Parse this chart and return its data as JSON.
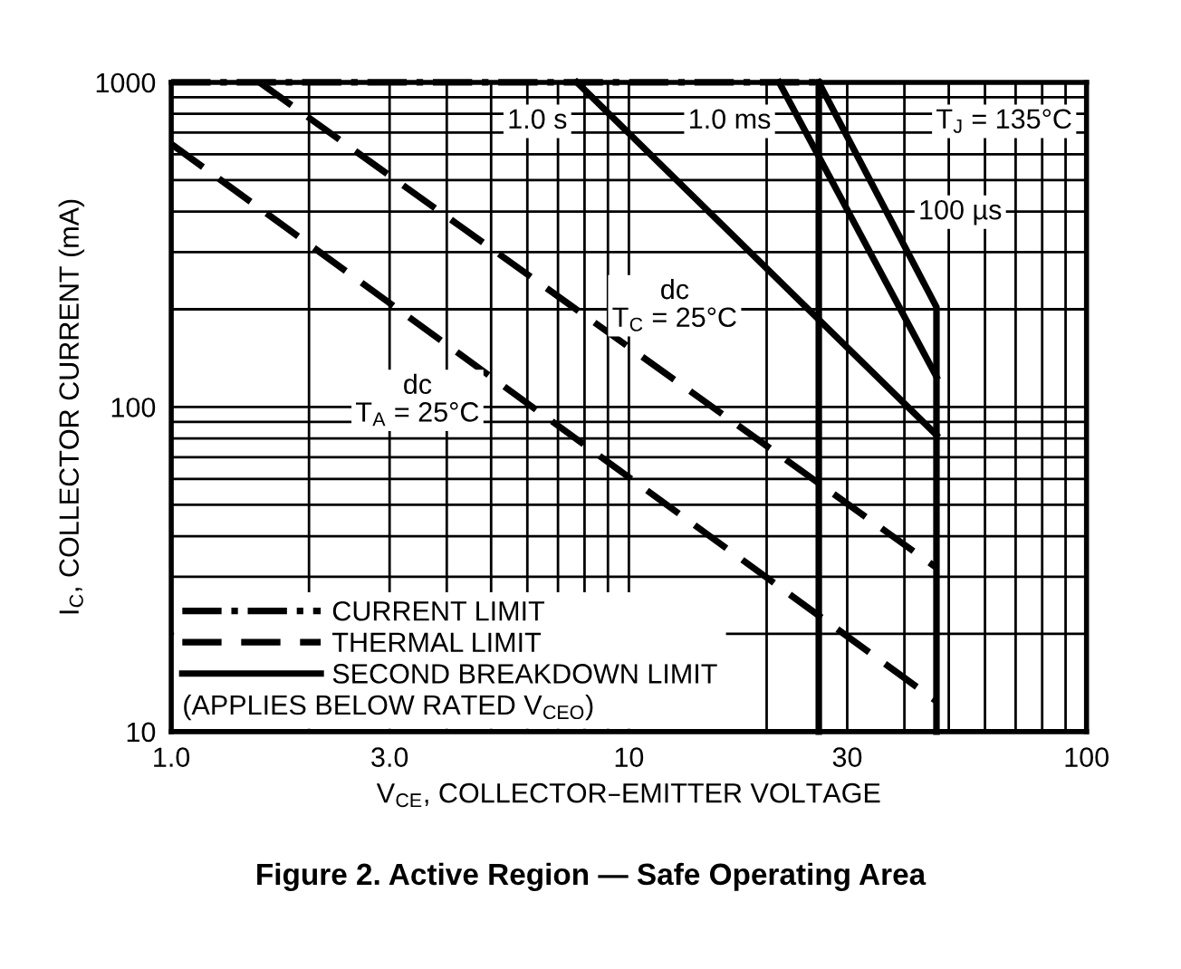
{
  "chart_data": {
    "type": "line",
    "title": "Figure 2. Active Region — Safe Operating Area",
    "xlabel": "V$_{CE}$, COLLECTOR–EMITTER VOLTAGE",
    "ylabel": "I$_{C}$, COLLECTOR CURRENT (mA)",
    "log": "xy",
    "xlim": [
      1,
      100
    ],
    "ylim": [
      10,
      1000
    ],
    "xticks": [
      {
        "value": 1,
        "label": "1.0"
      },
      {
        "value": 2,
        "label": null
      },
      {
        "value": 3,
        "label": "3.0"
      },
      {
        "value": 4,
        "label": null
      },
      {
        "value": 5,
        "label": null
      },
      {
        "value": 6,
        "label": null
      },
      {
        "value": 7,
        "label": null
      },
      {
        "value": 8,
        "label": null
      },
      {
        "value": 9,
        "label": null
      },
      10,
      {
        "value": 20,
        "label": null
      },
      30,
      {
        "value": 40,
        "label": null
      },
      {
        "value": 50,
        "label": null
      },
      {
        "value": 60,
        "label": null
      },
      {
        "value": 70,
        "label": null
      },
      {
        "value": 80,
        "label": null
      },
      {
        "value": 90,
        "label": null
      },
      100
    ],
    "yticks": [
      10,
      {
        "value": 20,
        "label": null
      },
      {
        "value": 30,
        "label": null
      },
      {
        "value": 40,
        "label": null
      },
      {
        "value": 50,
        "label": null
      },
      {
        "value": 60,
        "label": null
      },
      {
        "value": 70,
        "label": null
      },
      {
        "value": 80,
        "label": null
      },
      {
        "value": 90,
        "label": null
      },
      100,
      {
        "value": 200,
        "label": null
      },
      {
        "value": 300,
        "label": null
      },
      {
        "value": 400,
        "label": null
      },
      {
        "value": 500,
        "label": null
      },
      {
        "value": 600,
        "label": null
      },
      {
        "value": 700,
        "label": null
      },
      {
        "value": 800,
        "label": null
      },
      {
        "value": 900,
        "label": null
      },
      1000
    ],
    "grid": true,
    "legend": "bottom left",
    "legend_title": "(APPLIES BELOW RATED V$_{CEO}$)",
    "series": [
      {
        "name": "CURRENT LIMIT",
        "color": "#000000",
        "line_style": "dashdot",
        "x": [
          1,
          26
        ],
        "values": [
          1000,
          1000
        ]
      },
      {
        "name": "THERMAL LIMIT",
        "color": "#000000",
        "line_style": "dashed",
        "x": [
          1.56,
          47
        ],
        "values": [
          1000,
          32
        ]
      },
      {
        "color": "#000000",
        "line_style": "dashed",
        "x": [
          1,
          47
        ],
        "values": [
          646,
          12.4
        ]
      },
      {
        "name": "SECOND BREAKDOWN LIMIT",
        "color": "#000000",
        "line_style": "solid",
        "x": [
          7.7,
          47
        ],
        "values": [
          1000,
          82
        ]
      },
      {
        "color": "#000000",
        "line_style": "solid",
        "x": [
          21.3,
          47
        ],
        "values": [
          1000,
          124
        ]
      },
      {
        "color": "#000000",
        "line_style": "solid",
        "x": [
          26,
          47,
          47
        ],
        "values": [
          1000,
          203,
          10
        ]
      },
      {
        "color": "#000000",
        "line_style": "solid",
        "x": [
          26,
          26
        ],
        "values": [
          1000,
          10
        ]
      }
    ],
    "annotations": [
      "1.0 s",
      "1.0 ms",
      "T$_{J}$ = 135°C",
      "100 µs",
      "dc\nT$_{C}$ = 25°C",
      "dc\nT$_{A}$ = 25°C"
    ]
  }
}
